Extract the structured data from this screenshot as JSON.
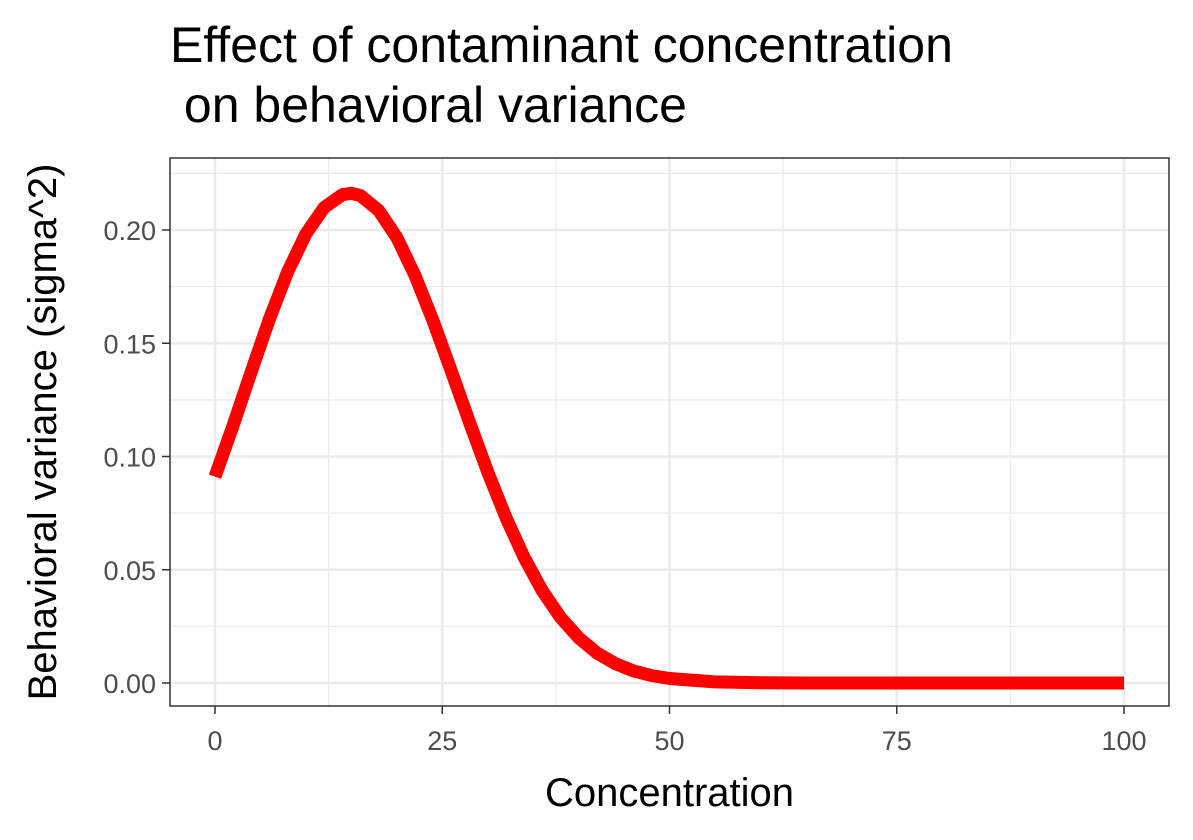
{
  "title_lines": [
    "Effect of contaminant concentration",
    " on behavioral variance"
  ],
  "chart_data": {
    "type": "line",
    "title": "Effect of contaminant concentration\n on behavioral variance",
    "xlabel": "Concentration",
    "ylabel": "Behavioral variance (sigma^2)",
    "xlim": [
      0,
      100
    ],
    "ylim": [
      0,
      0.22
    ],
    "x_ticks": [
      0,
      25,
      50,
      75,
      100
    ],
    "x_tick_labels": [
      "0",
      "25",
      "50",
      "75",
      "100"
    ],
    "y_ticks": [
      0,
      0.05,
      0.1,
      0.15,
      0.2
    ],
    "y_tick_labels": [
      "0.00",
      "0.05",
      "0.10",
      "0.15",
      "0.20"
    ],
    "grid": true,
    "series": [
      {
        "color": "#ff0000",
        "x": [
          0,
          2,
          4,
          6,
          8,
          10,
          12,
          14,
          15,
          16,
          18,
          20,
          22,
          24,
          26,
          28,
          30,
          32,
          34,
          36,
          38,
          40,
          42,
          44,
          46,
          48,
          50,
          55,
          60,
          65,
          70,
          80,
          90,
          100
        ],
        "values": [
          0.0911,
          0.1138,
          0.1376,
          0.1608,
          0.1816,
          0.1983,
          0.2099,
          0.2156,
          0.2162,
          0.2152,
          0.2087,
          0.1967,
          0.1799,
          0.1598,
          0.1377,
          0.1151,
          0.0932,
          0.0731,
          0.0555,
          0.0408,
          0.029,
          0.02,
          0.0133,
          0.0086,
          0.0054,
          0.0033,
          0.002,
          0.0005,
          0.0001,
          0.0,
          0.0,
          0.0,
          0.0,
          0.0
        ]
      }
    ]
  }
}
